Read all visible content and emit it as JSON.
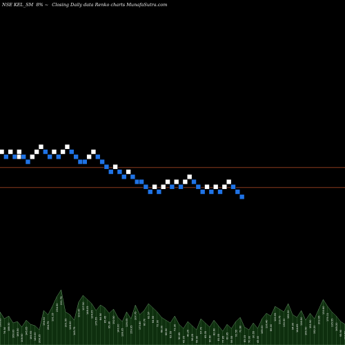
{
  "header": {
    "symbol": "NSE KEL_SM",
    "separator": "8% ~",
    "description": "Closing Daily data Renko charts MunafaSutra.com"
  },
  "chart_data": {
    "type": "renko",
    "title": "",
    "xlabel": "",
    "ylabel": "",
    "grid": false,
    "legend": "none",
    "reference_lines": [
      {
        "name": "",
        "level": 15.5,
        "color": "#8b3a1e"
      },
      {
        "name": "",
        "level": 13.5,
        "color": "#8b3a1e"
      }
    ],
    "bricks": [
      {
        "col": 0,
        "level": 17.0,
        "dir": "up"
      },
      {
        "col": 1,
        "level": 16.5,
        "dir": "down"
      },
      {
        "col": 2,
        "level": 17.0,
        "dir": "up"
      },
      {
        "col": 3,
        "level": 16.5,
        "dir": "down"
      },
      {
        "col": 4,
        "level": 16.5,
        "dir": "up"
      },
      {
        "col": 4,
        "level": 17.0,
        "dir": "up"
      },
      {
        "col": 5,
        "level": 16.5,
        "dir": "down"
      },
      {
        "col": 6,
        "level": 16.0,
        "dir": "down"
      },
      {
        "col": 7,
        "level": 16.5,
        "dir": "up"
      },
      {
        "col": 8,
        "level": 17.0,
        "dir": "up"
      },
      {
        "col": 9,
        "level": 17.5,
        "dir": "up"
      },
      {
        "col": 10,
        "level": 17.0,
        "dir": "down"
      },
      {
        "col": 11,
        "level": 16.5,
        "dir": "down"
      },
      {
        "col": 12,
        "level": 17.0,
        "dir": "up"
      },
      {
        "col": 13,
        "level": 16.5,
        "dir": "down"
      },
      {
        "col": 14,
        "level": 17.0,
        "dir": "up"
      },
      {
        "col": 15,
        "level": 17.5,
        "dir": "up"
      },
      {
        "col": 16,
        "level": 17.0,
        "dir": "down"
      },
      {
        "col": 17,
        "level": 16.5,
        "dir": "down"
      },
      {
        "col": 18,
        "level": 16.0,
        "dir": "down"
      },
      {
        "col": 19,
        "level": 16.0,
        "dir": "down"
      },
      {
        "col": 20,
        "level": 16.5,
        "dir": "up"
      },
      {
        "col": 21,
        "level": 17.0,
        "dir": "up"
      },
      {
        "col": 22,
        "level": 16.5,
        "dir": "down"
      },
      {
        "col": 23,
        "level": 16.0,
        "dir": "down"
      },
      {
        "col": 24,
        "level": 15.5,
        "dir": "down"
      },
      {
        "col": 25,
        "level": 15.0,
        "dir": "down"
      },
      {
        "col": 26,
        "level": 15.5,
        "dir": "up"
      },
      {
        "col": 27,
        "level": 15.0,
        "dir": "down"
      },
      {
        "col": 28,
        "level": 14.5,
        "dir": "down"
      },
      {
        "col": 29,
        "level": 15.0,
        "dir": "up"
      },
      {
        "col": 30,
        "level": 14.5,
        "dir": "down"
      },
      {
        "col": 31,
        "level": 14.0,
        "dir": "down"
      },
      {
        "col": 32,
        "level": 14.0,
        "dir": "down"
      },
      {
        "col": 33,
        "level": 13.5,
        "dir": "down"
      },
      {
        "col": 34,
        "level": 13.0,
        "dir": "down"
      },
      {
        "col": 35,
        "level": 13.5,
        "dir": "up"
      },
      {
        "col": 36,
        "level": 13.0,
        "dir": "down"
      },
      {
        "col": 37,
        "level": 13.5,
        "dir": "up"
      },
      {
        "col": 38,
        "level": 14.0,
        "dir": "up"
      },
      {
        "col": 39,
        "level": 13.5,
        "dir": "down"
      },
      {
        "col": 40,
        "level": 14.0,
        "dir": "up"
      },
      {
        "col": 41,
        "level": 13.5,
        "dir": "down"
      },
      {
        "col": 42,
        "level": 14.0,
        "dir": "up"
      },
      {
        "col": 43,
        "level": 14.5,
        "dir": "up"
      },
      {
        "col": 44,
        "level": 14.0,
        "dir": "down"
      },
      {
        "col": 45,
        "level": 13.5,
        "dir": "down"
      },
      {
        "col": 46,
        "level": 13.0,
        "dir": "down"
      },
      {
        "col": 47,
        "level": 13.5,
        "dir": "up"
      },
      {
        "col": 48,
        "level": 13.0,
        "dir": "down"
      },
      {
        "col": 49,
        "level": 13.5,
        "dir": "up"
      },
      {
        "col": 50,
        "level": 13.0,
        "dir": "down"
      },
      {
        "col": 51,
        "level": 13.5,
        "dir": "up"
      },
      {
        "col": 52,
        "level": 14.0,
        "dir": "up"
      },
      {
        "col": 53,
        "level": 13.5,
        "dir": "down"
      },
      {
        "col": 54,
        "level": 13.0,
        "dir": "down"
      },
      {
        "col": 55,
        "level": 12.5,
        "dir": "down"
      }
    ],
    "volume": {
      "values": [
        24,
        19,
        21,
        16,
        17,
        13,
        18,
        15,
        14,
        11,
        25,
        22,
        28,
        35,
        40,
        24,
        22,
        18,
        31,
        36,
        33,
        30,
        25,
        29,
        27,
        23,
        26,
        20,
        17,
        24,
        19,
        29,
        22,
        25,
        30,
        27,
        24,
        20,
        18,
        16,
        21,
        15,
        12,
        17,
        14,
        11,
        19,
        16,
        13,
        18,
        14,
        10,
        15,
        12,
        17,
        20,
        13,
        11,
        16,
        12,
        19,
        23,
        21,
        28,
        26,
        24,
        30,
        22,
        20,
        25,
        18,
        23,
        19,
        26,
        33,
        28,
        24,
        21,
        17,
        15
      ],
      "labels": [
        "196.66",
        "74.50",
        "188.30",
        "160.00",
        "185.50",
        "108.50",
        "145.65",
        "180.95",
        "140.00",
        "208.35",
        "194.32",
        "264.75",
        "131.15",
        "234.30",
        "221.75",
        "201.55",
        "128.00",
        "145.75",
        "123.30",
        "127.50",
        "148.05",
        "124.05",
        "175.55",
        "84.50",
        "85.45",
        "95.36",
        "152.50",
        "140.00",
        "128.35",
        "126.05",
        "159.95",
        "107.75",
        "173.80",
        "80.70",
        "82.57",
        "64.55",
        "72.00",
        "68.00",
        "68.50",
        "62.55",
        "73.30",
        "50.65",
        "43.05",
        "40.25",
        "56.25",
        "59.90",
        "57.70",
        "65.35",
        "90.60",
        "82.60",
        "81.05",
        "77.85",
        "60.95",
        "59.55",
        "91.55",
        "71.60",
        "85.15",
        "70.00",
        "30.55",
        "45.00",
        "165.00",
        "130.40",
        "86.00",
        "120.95",
        "110.75",
        "130.30",
        "155.30",
        "94.00",
        "144.65",
        "116.50",
        "160.50",
        "151.90",
        "152.20",
        "202.95",
        "130.60",
        "179.11",
        "135.55",
        "165.20",
        "95.90",
        "103.50"
      ]
    }
  },
  "colors": {
    "background": "#000000",
    "up_brick": "#ffffff",
    "down_brick": "#1f73e6",
    "brick_border": "#000000",
    "reference_line": "#8b3a1e",
    "volume_fill": "#0e2f0e",
    "volume_edge": "#6a9a6a",
    "header_text": "#f2f2f2",
    "volume_label": "#e8e8e8"
  }
}
